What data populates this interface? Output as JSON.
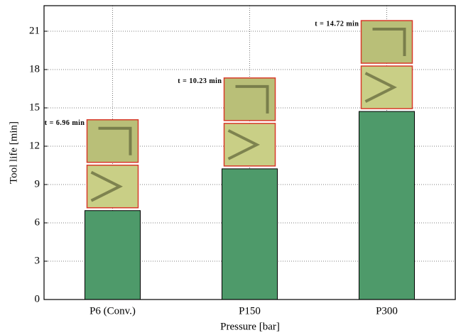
{
  "chart_data": {
    "type": "bar",
    "categories": [
      "P6 (Conv.)",
      "P150",
      "P300"
    ],
    "values": [
      6.96,
      10.23,
      14.72
    ],
    "value_labels": [
      "t = 6.96 min",
      "t = 10.23 min",
      "t = 14.72 min"
    ],
    "color": "#4e9a6a",
    "xlabel": "Pressure [bar]",
    "ylabel": "Tool life [min]",
    "ylim": [
      0,
      23
    ],
    "yticks": [
      0,
      3,
      6,
      9,
      12,
      15,
      18,
      21
    ],
    "grid": true
  }
}
